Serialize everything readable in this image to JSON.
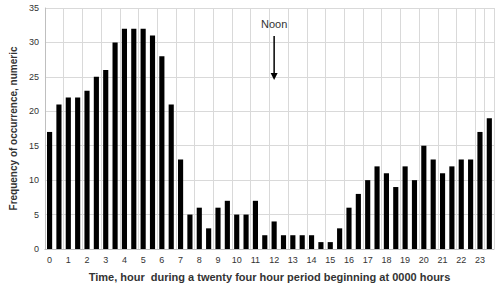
{
  "chart_data": {
    "type": "bar",
    "x_label": "Time, hour  during a twenty four hour period beginning at 0000 hours",
    "y_label": "Frequency of occurrence, numeric",
    "annotation": "Noon",
    "categories": [
      "0",
      null,
      "1",
      null,
      "2",
      null,
      "3",
      null,
      "4",
      null,
      "5",
      null,
      "6",
      null,
      "7",
      null,
      "8",
      null,
      "9",
      null,
      "10",
      null,
      "11",
      null,
      "12",
      null,
      "13",
      null,
      "14",
      null,
      "15",
      null,
      "16",
      null,
      "17",
      null,
      "18",
      null,
      "19",
      null,
      "20",
      null,
      "21",
      null,
      "22",
      null,
      "23",
      null
    ],
    "values": [
      17,
      21,
      22,
      22,
      23,
      25,
      26,
      30,
      32,
      32,
      32,
      31,
      28,
      21,
      13,
      5,
      6,
      3,
      6,
      7,
      5,
      5,
      7,
      2,
      4,
      2,
      2,
      2,
      2,
      1,
      1,
      3,
      6,
      8,
      10,
      12,
      11,
      9,
      12,
      10,
      15,
      13,
      11,
      12,
      13,
      13,
      17,
      19
    ],
    "color": "#000000",
    "ylim": [
      0,
      35
    ],
    "yticks": [
      0,
      5,
      10,
      15,
      20,
      25,
      30,
      35
    ],
    "grid": true
  }
}
